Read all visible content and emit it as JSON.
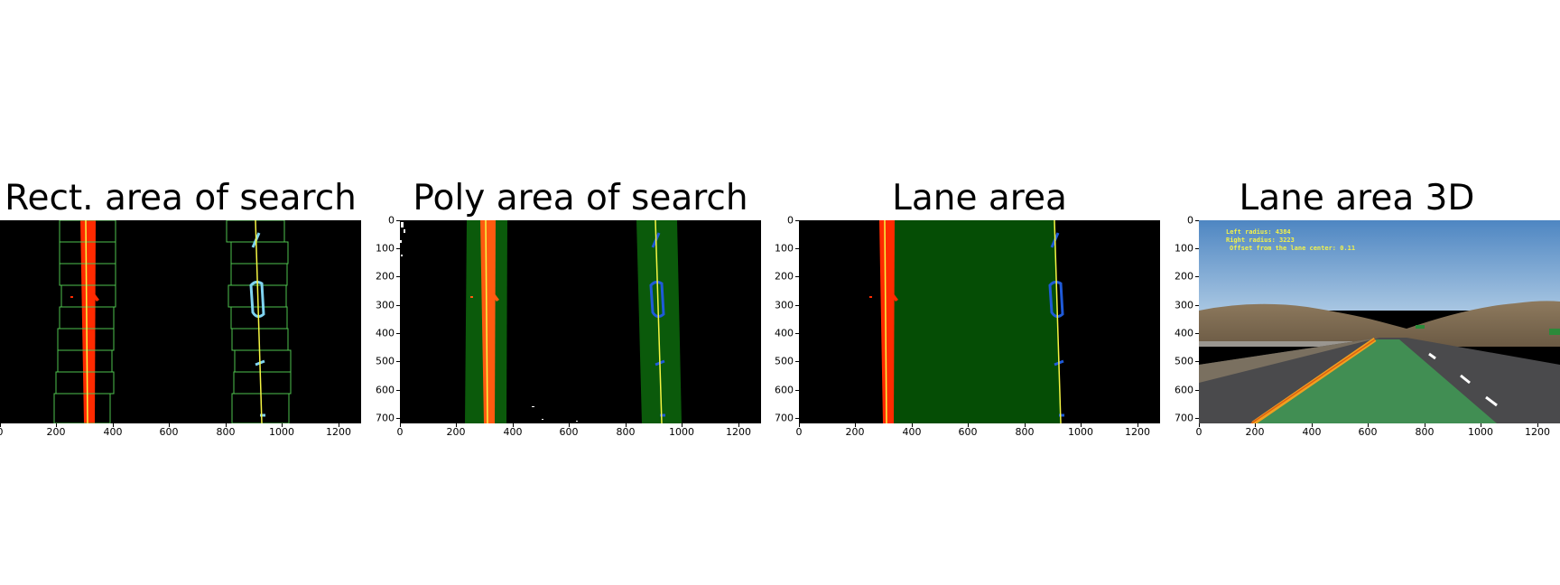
{
  "panels": [
    {
      "title": "Rect. area of search"
    },
    {
      "title": "Poly area of search"
    },
    {
      "title": "Lane area"
    },
    {
      "title": "Lane area 3D"
    }
  ],
  "axes": {
    "x_ticks": [
      "0",
      "200",
      "400",
      "600",
      "800",
      "1000",
      "1200"
    ],
    "y_ticks": [
      "0",
      "100",
      "200",
      "300",
      "400",
      "500",
      "600",
      "700"
    ]
  },
  "overlay": {
    "left_radius": "Left radius: 4384",
    "right_radius": "Right radius: 3223",
    "offset": "Offset from the lane center: 0.11"
  },
  "colors": {
    "left_lane": "#ff2a00",
    "right_lane_rect": "#7fd3f0",
    "right_lane_poly": "#1f5ad8",
    "fit_line": "#f5f542",
    "search_window": "#4ec24e",
    "poly_area": "#0b5a0b",
    "lane_area": "#054d05",
    "lane_area_3d": "#3f9a55"
  }
}
